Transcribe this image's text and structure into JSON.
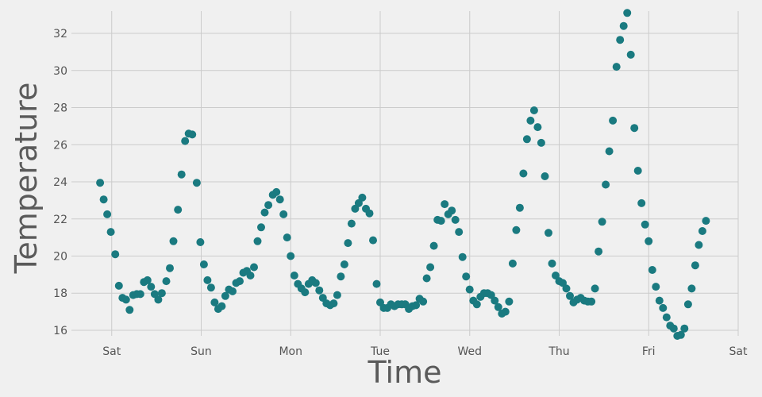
{
  "chart_data": {
    "type": "scatter",
    "title": "",
    "xlabel": "Time",
    "ylabel": "Temperature",
    "x_ticks": [
      "Sat",
      "Sun",
      "Mon",
      "Tue",
      "Wed",
      "Thu",
      "Fri",
      "Sat"
    ],
    "y_ticks": [
      "16",
      "18",
      "20",
      "22",
      "24",
      "26",
      "28",
      "30",
      "32"
    ],
    "x_unit": "days (0 = Sat)",
    "xlim": [
      -0.45,
      7.0
    ],
    "ylim": [
      15.7,
      33.2
    ],
    "grid": true,
    "colors": {
      "points": "#1a7a80",
      "background": "#f0f0f0",
      "grid": "#cbcbcb"
    },
    "series": [
      {
        "values": [
          [
            -0.13,
            23.95
          ],
          [
            -0.09,
            23.05
          ],
          [
            -0.05,
            22.25
          ],
          [
            -0.01,
            21.3
          ],
          [
            0.04,
            20.1
          ],
          [
            0.08,
            18.4
          ],
          [
            0.12,
            17.75
          ],
          [
            0.16,
            17.65
          ],
          [
            0.2,
            17.1
          ],
          [
            0.24,
            17.9
          ],
          [
            0.28,
            17.95
          ],
          [
            0.32,
            17.95
          ],
          [
            0.36,
            18.6
          ],
          [
            0.4,
            18.7
          ],
          [
            0.44,
            18.35
          ],
          [
            0.48,
            17.95
          ],
          [
            0.52,
            17.65
          ],
          [
            0.56,
            18.0
          ],
          [
            0.61,
            18.65
          ],
          [
            0.65,
            19.35
          ],
          [
            0.69,
            20.8
          ],
          [
            0.74,
            22.5
          ],
          [
            0.78,
            24.4
          ],
          [
            0.82,
            26.2
          ],
          [
            0.86,
            26.6
          ],
          [
            0.9,
            26.55
          ],
          [
            0.95,
            23.95
          ],
          [
            0.99,
            20.75
          ],
          [
            1.03,
            19.55
          ],
          [
            1.07,
            18.7
          ],
          [
            1.11,
            18.3
          ],
          [
            1.15,
            17.5
          ],
          [
            1.19,
            17.15
          ],
          [
            1.23,
            17.3
          ],
          [
            1.27,
            17.85
          ],
          [
            1.31,
            18.2
          ],
          [
            1.35,
            18.1
          ],
          [
            1.39,
            18.55
          ],
          [
            1.43,
            18.65
          ],
          [
            1.47,
            19.1
          ],
          [
            1.51,
            19.2
          ],
          [
            1.55,
            18.95
          ],
          [
            1.59,
            19.4
          ],
          [
            1.63,
            20.8
          ],
          [
            1.67,
            21.55
          ],
          [
            1.71,
            22.35
          ],
          [
            1.75,
            22.75
          ],
          [
            1.8,
            23.3
          ],
          [
            1.84,
            23.45
          ],
          [
            1.88,
            23.05
          ],
          [
            1.92,
            22.25
          ],
          [
            1.96,
            21.0
          ],
          [
            2.0,
            20.0
          ],
          [
            2.04,
            18.95
          ],
          [
            2.08,
            18.5
          ],
          [
            2.12,
            18.25
          ],
          [
            2.16,
            18.05
          ],
          [
            2.2,
            18.5
          ],
          [
            2.24,
            18.7
          ],
          [
            2.28,
            18.55
          ],
          [
            2.32,
            18.15
          ],
          [
            2.36,
            17.75
          ],
          [
            2.4,
            17.45
          ],
          [
            2.44,
            17.35
          ],
          [
            2.48,
            17.45
          ],
          [
            2.52,
            17.9
          ],
          [
            2.56,
            18.9
          ],
          [
            2.6,
            19.55
          ],
          [
            2.64,
            20.7
          ],
          [
            2.68,
            21.75
          ],
          [
            2.72,
            22.55
          ],
          [
            2.76,
            22.85
          ],
          [
            2.8,
            23.15
          ],
          [
            2.84,
            22.55
          ],
          [
            2.88,
            22.3
          ],
          [
            2.92,
            20.85
          ],
          [
            2.96,
            18.5
          ],
          [
            3.0,
            17.5
          ],
          [
            3.04,
            17.2
          ],
          [
            3.08,
            17.2
          ],
          [
            3.12,
            17.4
          ],
          [
            3.16,
            17.3
          ],
          [
            3.2,
            17.4
          ],
          [
            3.24,
            17.4
          ],
          [
            3.28,
            17.4
          ],
          [
            3.32,
            17.15
          ],
          [
            3.36,
            17.3
          ],
          [
            3.4,
            17.35
          ],
          [
            3.44,
            17.7
          ],
          [
            3.48,
            17.55
          ],
          [
            3.52,
            18.8
          ],
          [
            3.56,
            19.4
          ],
          [
            3.6,
            20.55
          ],
          [
            3.64,
            21.95
          ],
          [
            3.68,
            21.9
          ],
          [
            3.72,
            22.8
          ],
          [
            3.76,
            22.25
          ],
          [
            3.8,
            22.45
          ],
          [
            3.84,
            21.95
          ],
          [
            3.88,
            21.3
          ],
          [
            3.92,
            19.95
          ],
          [
            3.96,
            18.9
          ],
          [
            4.0,
            18.2
          ],
          [
            4.04,
            17.6
          ],
          [
            4.08,
            17.4
          ],
          [
            4.12,
            17.8
          ],
          [
            4.16,
            18.0
          ],
          [
            4.2,
            18.0
          ],
          [
            4.24,
            17.9
          ],
          [
            4.28,
            17.6
          ],
          [
            4.32,
            17.25
          ],
          [
            4.36,
            16.9
          ],
          [
            4.4,
            17.0
          ],
          [
            4.44,
            17.55
          ],
          [
            4.48,
            19.6
          ],
          [
            4.52,
            21.4
          ],
          [
            4.56,
            22.6
          ],
          [
            4.6,
            24.45
          ],
          [
            4.64,
            26.3
          ],
          [
            4.68,
            27.3
          ],
          [
            4.72,
            27.85
          ],
          [
            4.76,
            26.95
          ],
          [
            4.8,
            26.1
          ],
          [
            4.84,
            24.3
          ],
          [
            4.88,
            21.25
          ],
          [
            4.92,
            19.6
          ],
          [
            4.96,
            18.95
          ],
          [
            5.0,
            18.65
          ],
          [
            5.04,
            18.55
          ],
          [
            5.08,
            18.25
          ],
          [
            5.12,
            17.85
          ],
          [
            5.16,
            17.5
          ],
          [
            5.2,
            17.65
          ],
          [
            5.24,
            17.75
          ],
          [
            5.28,
            17.6
          ],
          [
            5.32,
            17.55
          ],
          [
            5.36,
            17.55
          ],
          [
            5.4,
            18.25
          ],
          [
            5.44,
            20.25
          ],
          [
            5.48,
            21.85
          ],
          [
            5.52,
            23.85
          ],
          [
            5.56,
            25.65
          ],
          [
            5.6,
            27.3
          ],
          [
            5.64,
            30.2
          ],
          [
            5.68,
            31.65
          ],
          [
            5.72,
            32.4
          ],
          [
            5.76,
            33.1
          ],
          [
            5.8,
            30.85
          ],
          [
            5.84,
            26.9
          ],
          [
            5.88,
            24.6
          ],
          [
            5.92,
            22.85
          ],
          [
            5.96,
            21.7
          ],
          [
            6.0,
            20.8
          ],
          [
            6.04,
            19.25
          ],
          [
            6.08,
            18.35
          ],
          [
            6.12,
            17.6
          ],
          [
            6.16,
            17.2
          ],
          [
            6.2,
            16.7
          ],
          [
            6.24,
            16.25
          ],
          [
            6.28,
            16.1
          ],
          [
            6.32,
            15.7
          ],
          [
            6.36,
            15.75
          ],
          [
            6.4,
            16.1
          ],
          [
            6.44,
            17.4
          ],
          [
            6.48,
            18.25
          ],
          [
            6.52,
            19.5
          ],
          [
            6.56,
            20.6
          ],
          [
            6.6,
            21.35
          ],
          [
            6.64,
            21.9
          ]
        ]
      }
    ]
  }
}
